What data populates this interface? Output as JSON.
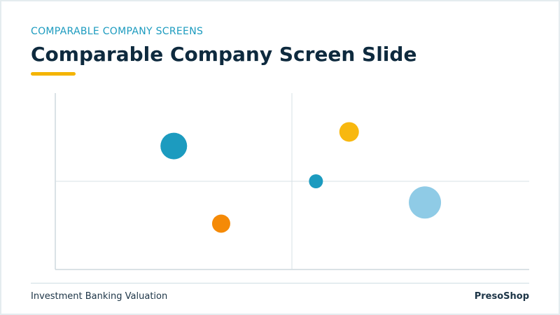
{
  "header": {
    "kicker": "COMPARABLE COMPANY SCREENS",
    "title": "Comparable Company Screen Slide",
    "accent_color": "#f4b400"
  },
  "footer": {
    "left": "Investment Banking Valuation",
    "right": "PresoShop"
  },
  "chart_data": {
    "type": "scatter",
    "title": "",
    "xlabel": "",
    "ylabel": "",
    "xlim": [
      0,
      100
    ],
    "ylim": [
      0,
      100
    ],
    "grid": false,
    "quadrant_divider": {
      "x": 50,
      "y": 50
    },
    "points": [
      {
        "x": 25,
        "y": 70,
        "size": 19,
        "color": "#1c9bbf"
      },
      {
        "x": 35,
        "y": 26,
        "size": 13,
        "color": "#f58a07"
      },
      {
        "x": 62,
        "y": 78,
        "size": 14,
        "color": "#f8b80f"
      },
      {
        "x": 55,
        "y": 50,
        "size": 10,
        "color": "#1c9bbf"
      },
      {
        "x": 78,
        "y": 38,
        "size": 23,
        "color": "#8fcbe6"
      }
    ]
  }
}
